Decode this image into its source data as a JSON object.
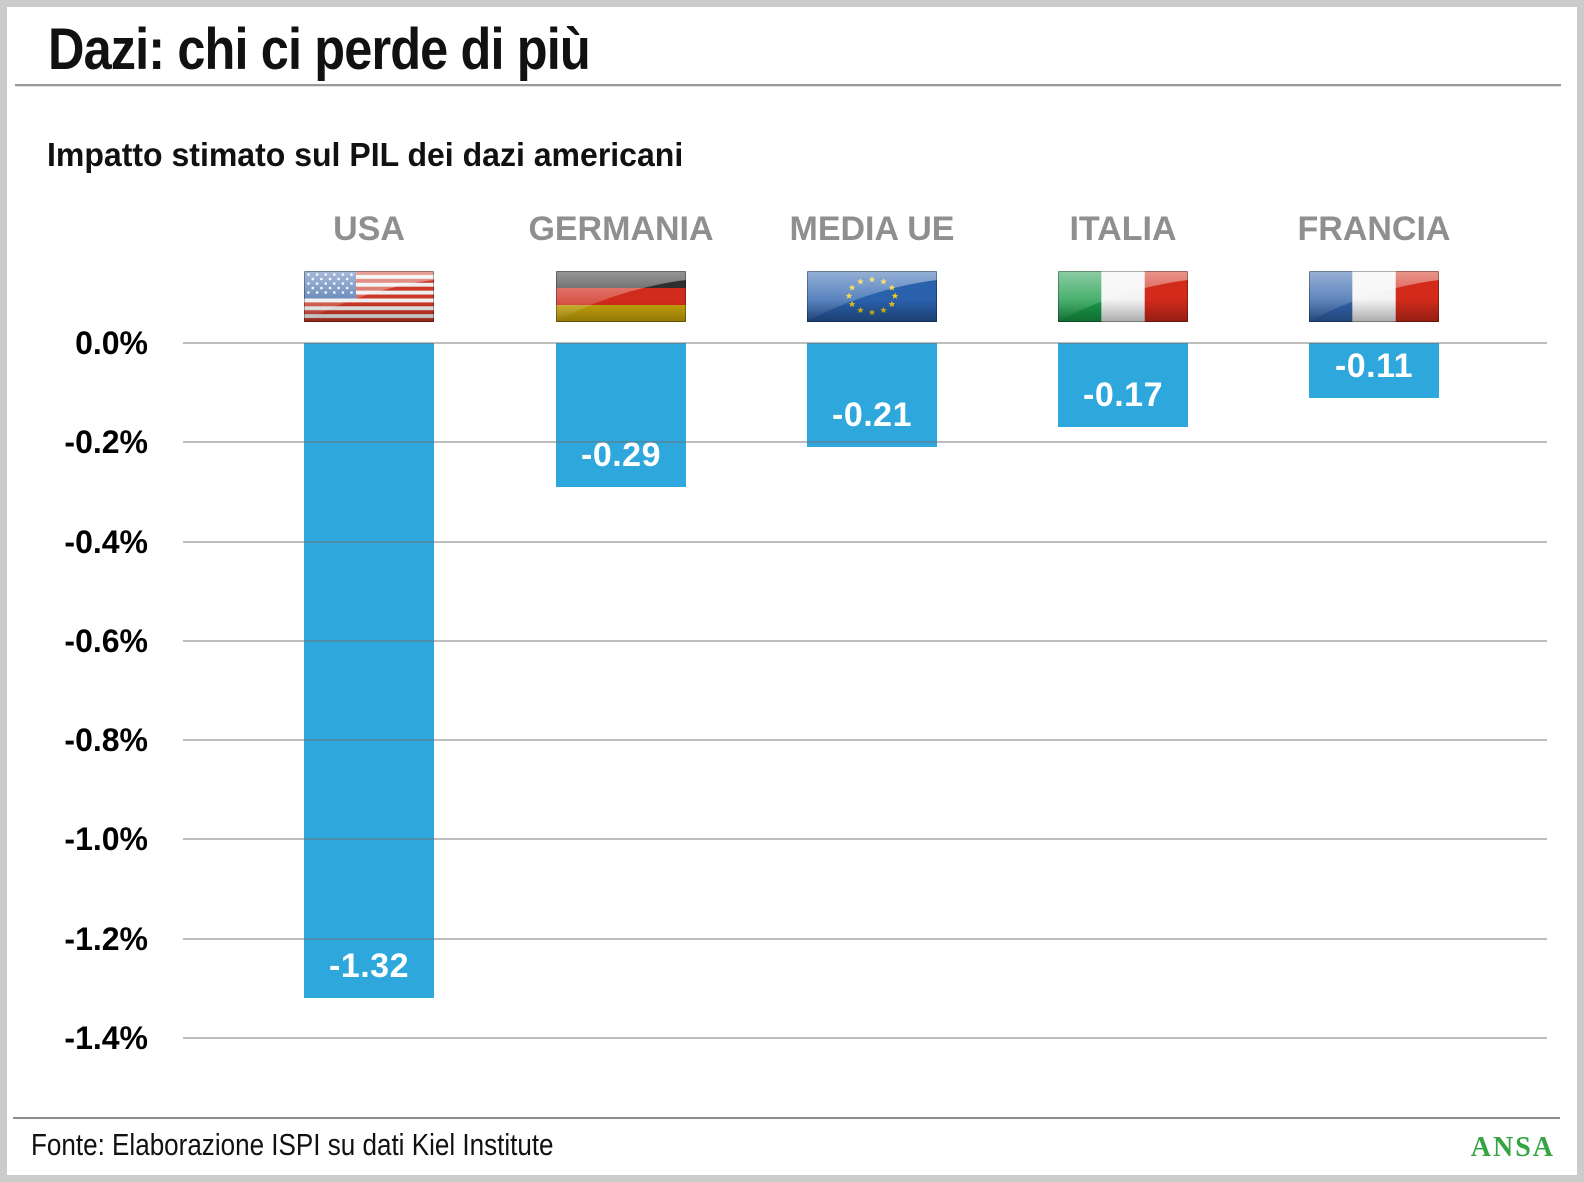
{
  "title": "Dazi: chi ci perde di più",
  "subtitle": "Impatto stimato sul PIL dei dazi americani",
  "footer": {
    "source": "Fonte: Elaborazione ISPI su dati Kiel Institute",
    "brand": "ANSA"
  },
  "colors": {
    "bar_blue": "#2ea7dc",
    "header_gray": "#8f8f8f",
    "ansa_green": "#35a544"
  },
  "chart_data": {
    "type": "bar",
    "title": "Impatto stimato sul PIL dei dazi americani",
    "categories": [
      "USA",
      "GERMANIA",
      "MEDIA UE",
      "ITALIA",
      "FRANCIA"
    ],
    "values": [
      -1.32,
      -0.29,
      -0.21,
      -0.17,
      -0.11
    ],
    "value_labels": [
      "-1.32",
      "-0.29",
      "-0.21",
      "-0.17",
      "-0.11"
    ],
    "unit": "% PIL",
    "xlabel": "",
    "ylabel": "",
    "ylim": [
      -1.4,
      0
    ],
    "yticks": [
      "0.0%",
      "-0.2%",
      "-0.4%",
      "-0.6%",
      "-0.8%",
      "-1.0%",
      "-1.2%",
      "-1.4%"
    ],
    "grid": true,
    "legend": false,
    "flag_icons": [
      "usa-flag",
      "germany-flag",
      "eu-flag",
      "italy-flag",
      "france-flag"
    ]
  }
}
